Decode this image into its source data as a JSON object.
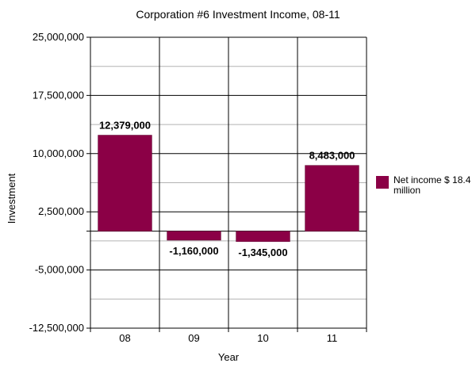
{
  "chart_data": {
    "type": "bar",
    "title": "Corporation #6 Investment Income, 08-11",
    "xlabel": "Year",
    "ylabel": "Investment",
    "categories": [
      "08",
      "09",
      "10",
      "11"
    ],
    "series": [
      {
        "name": "Net income $ 18.4 million",
        "values": [
          12379000,
          -1160000,
          -1345000,
          8483000
        ],
        "labels": [
          "12,379,000",
          "-1,160,000",
          "-1,345,000",
          "8,483,000"
        ]
      }
    ],
    "ylim": [
      -12500000,
      25000000
    ],
    "yticks": [
      -12500000,
      -5000000,
      2500000,
      10000000,
      17500000,
      25000000
    ],
    "ytick_labels": [
      "-12,500,000",
      "-5,000,000",
      "2,500,000",
      "10,000,000",
      "17,500,000",
      "25,000,000"
    ],
    "grid": true,
    "legend_position": "right",
    "bar_color": "#8b0046"
  },
  "legend": {
    "label": "Net income $ 18.4 million"
  }
}
